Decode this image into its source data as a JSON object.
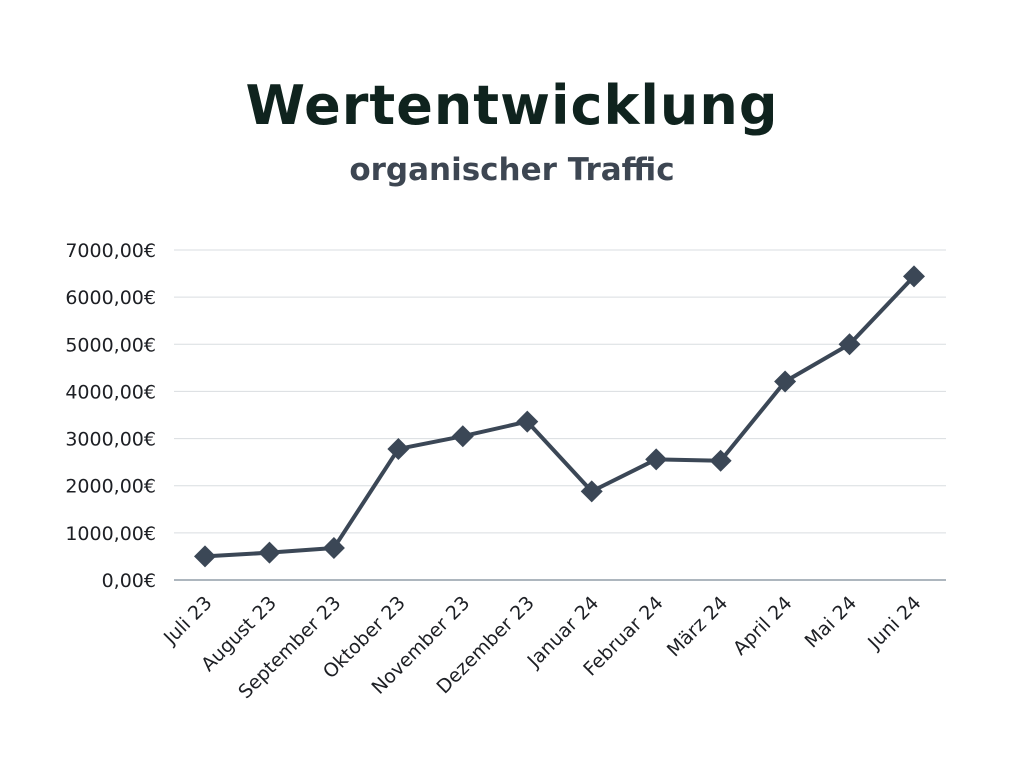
{
  "chart_data": {
    "type": "line",
    "title": "Wertentwicklung",
    "subtitle": "organischer Traffic",
    "categories": [
      "Juli 23",
      "August 23",
      "September 23",
      "Oktober 23",
      "November 23",
      "Dezember 23",
      "Januar 24",
      "Februar 24",
      "März 24",
      "April 24",
      "Mai 24",
      "Juni 24"
    ],
    "series": [
      {
        "values": [
          500,
          580,
          680,
          2780,
          3050,
          3360,
          1880,
          2560,
          2530,
          4210,
          5000,
          6440
        ]
      }
    ],
    "ylim": [
      0,
      7000
    ],
    "yticks": [
      0,
      1000,
      2000,
      3000,
      4000,
      5000,
      6000,
      7000
    ],
    "ytick_labels": [
      "0,00€",
      "1000,00€",
      "2000,00€",
      "3000,00€",
      "4000,00€",
      "5000,00€",
      "6000,00€",
      "7000,00€"
    ],
    "grid": true,
    "marker": "diamond",
    "colors": {
      "line": "#3b4756",
      "grid": "#d9dde0",
      "axis": "#7c8a96",
      "text": "#1d1f24"
    }
  }
}
